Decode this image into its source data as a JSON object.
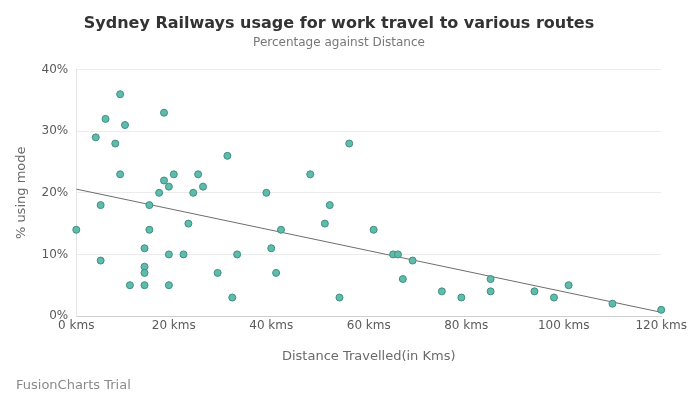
{
  "chart_data": {
    "type": "scatter",
    "title": "Sydney Railways usage for work travel to various routes",
    "subtitle": "Percentage against Distance",
    "x_label": "Distance Travelled(in Kms)",
    "y_label": "% using mode",
    "annotations": [
      "FusionCharts Trial"
    ],
    "series": [
      {
        "type": "scatter",
        "color": "#5fbcac",
        "marker": "circle",
        "x": [
          0,
          4,
          6,
          5,
          5,
          8,
          9,
          10,
          9,
          11,
          14,
          14,
          14,
          14,
          15,
          15,
          17,
          18,
          18,
          19,
          19,
          19,
          20,
          22,
          23,
          24,
          25,
          26,
          29,
          31,
          32,
          33,
          39,
          40,
          41,
          42,
          48,
          51,
          52,
          54,
          56,
          61,
          65,
          66,
          67,
          69,
          75,
          79,
          85,
          85,
          94,
          98,
          101,
          110,
          120
        ],
        "values": [
          14,
          29,
          32,
          18,
          9,
          28,
          36,
          31,
          23,
          5,
          11,
          8,
          7,
          5,
          14,
          18,
          20,
          33,
          22,
          21,
          10,
          5,
          23,
          10,
          15,
          20,
          23,
          21,
          7,
          26,
          3,
          10,
          20,
          11,
          7,
          14,
          23,
          15,
          18,
          3,
          28,
          14,
          10,
          10,
          6,
          9,
          4,
          3,
          4,
          6,
          4,
          3,
          5,
          2,
          1
        ]
      },
      {
        "type": "line",
        "color": "#6e6e6e",
        "line_style": "solid",
        "x": [
          0,
          120
        ],
        "values": [
          20.6,
          0.6
        ]
      }
    ],
    "xlim": [
      0,
      120
    ],
    "xticks": [
      {
        "value": 0,
        "label": "0 kms"
      },
      {
        "value": 20,
        "label": "20 kms"
      },
      {
        "value": 40,
        "label": "40 kms"
      },
      {
        "value": 60,
        "label": "60 kms"
      },
      {
        "value": 80,
        "label": "80 kms"
      },
      {
        "value": 100,
        "label": "100 kms"
      },
      {
        "value": 120,
        "label": "120 kms"
      }
    ],
    "ylim": [
      0,
      40
    ],
    "yticks": [
      {
        "value": 0,
        "label": "0%"
      },
      {
        "value": 10,
        "label": "10%"
      },
      {
        "value": 20,
        "label": "20%"
      },
      {
        "value": 30,
        "label": "30%"
      },
      {
        "value": 40,
        "label": "40%"
      }
    ],
    "grid": "y"
  }
}
